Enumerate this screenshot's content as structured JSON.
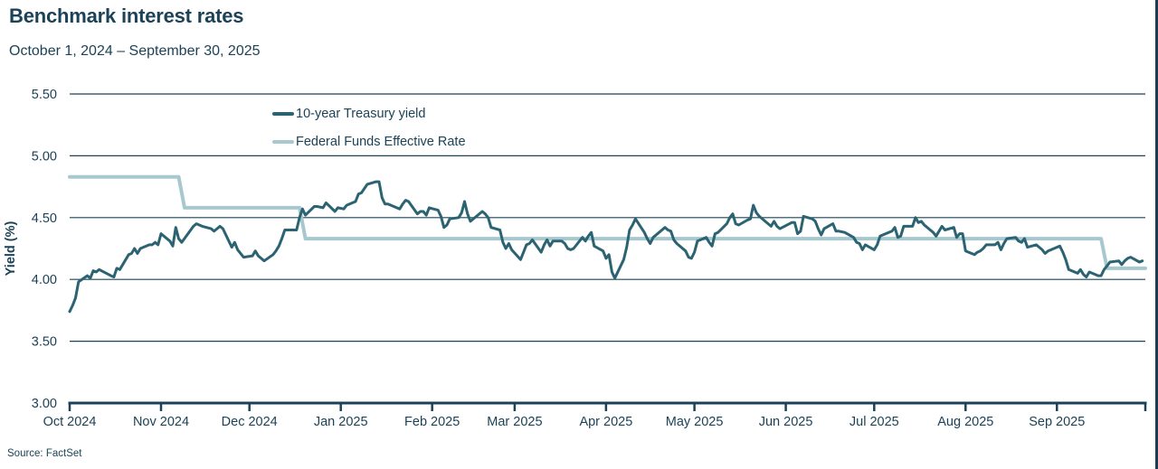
{
  "header": {
    "title": "Benchmark interest rates",
    "subtitle": "October 1, 2024 – September 30, 2025"
  },
  "source_label": "Source: FactSet",
  "colors": {
    "treasury_line": "#2B6372",
    "fed_funds_line": "#A8C8CF",
    "text": "#1C4257",
    "gridline": "#1C4257",
    "axis": "#1C4257",
    "right_border": "#1C3C50"
  },
  "chart_data": {
    "type": "line",
    "title": "Benchmark interest rates",
    "subtitle": "October 1, 2024 – September 30, 2025",
    "ylabel": "Yield (%)",
    "ylim": [
      3.0,
      5.5
    ],
    "yticks": [
      "5.50",
      "5.00",
      "4.50",
      "4.00",
      "3.50",
      "3.00"
    ],
    "grid": "horizontal-only",
    "legend_position": "top-left-inside",
    "x_axis": {
      "unit": "days since Oct 1, 2024",
      "range": [
        0,
        365
      ],
      "ticks": [
        {
          "day": 0,
          "label": "Oct 2024"
        },
        {
          "day": 31,
          "label": "Nov 2024"
        },
        {
          "day": 61,
          "label": "Dec 2024"
        },
        {
          "day": 92,
          "label": "Jan 2025"
        },
        {
          "day": 123,
          "label": "Feb 2025"
        },
        {
          "day": 151,
          "label": "Mar 2025"
        },
        {
          "day": 182,
          "label": "Apr 2025"
        },
        {
          "day": 212,
          "label": "May 2025"
        },
        {
          "day": 243,
          "label": "Jun 2025"
        },
        {
          "day": 273,
          "label": "Jul 2025"
        },
        {
          "day": 304,
          "label": "Aug 2025"
        },
        {
          "day": 335,
          "label": "Sep 2025"
        },
        {
          "day": 365,
          "label": ""
        }
      ]
    },
    "series": [
      {
        "name": "10-year Treasury yield",
        "color": "#2B6372",
        "width": 3,
        "z": 2,
        "points": [
          [
            0,
            3.74
          ],
          [
            1,
            3.79
          ],
          [
            2,
            3.85
          ],
          [
            3,
            3.98
          ],
          [
            6,
            4.03
          ],
          [
            7,
            4.01
          ],
          [
            8,
            4.07
          ],
          [
            9,
            4.06
          ],
          [
            10,
            4.08
          ],
          [
            14,
            4.03
          ],
          [
            15,
            4.02
          ],
          [
            16,
            4.09
          ],
          [
            17,
            4.08
          ],
          [
            20,
            4.2
          ],
          [
            21,
            4.21
          ],
          [
            22,
            4.25
          ],
          [
            23,
            4.21
          ],
          [
            24,
            4.25
          ],
          [
            27,
            4.28
          ],
          [
            28,
            4.28
          ],
          [
            29,
            4.3
          ],
          [
            30,
            4.28
          ],
          [
            31,
            4.37
          ],
          [
            34,
            4.31
          ],
          [
            35,
            4.27
          ],
          [
            36,
            4.42
          ],
          [
            37,
            4.33
          ],
          [
            38,
            4.3
          ],
          [
            42,
            4.43
          ],
          [
            43,
            4.45
          ],
          [
            44,
            4.44
          ],
          [
            45,
            4.43
          ],
          [
            48,
            4.41
          ],
          [
            49,
            4.39
          ],
          [
            50,
            4.41
          ],
          [
            51,
            4.43
          ],
          [
            52,
            4.41
          ],
          [
            55,
            4.26
          ],
          [
            56,
            4.3
          ],
          [
            57,
            4.24
          ],
          [
            59,
            4.18
          ],
          [
            62,
            4.19
          ],
          [
            63,
            4.23
          ],
          [
            64,
            4.19
          ],
          [
            65,
            4.17
          ],
          [
            66,
            4.15
          ],
          [
            69,
            4.2
          ],
          [
            70,
            4.23
          ],
          [
            71,
            4.27
          ],
          [
            72,
            4.33
          ],
          [
            73,
            4.4
          ],
          [
            76,
            4.4
          ],
          [
            77,
            4.4
          ],
          [
            78,
            4.5
          ],
          [
            79,
            4.57
          ],
          [
            80,
            4.52
          ],
          [
            83,
            4.59
          ],
          [
            84,
            4.59
          ],
          [
            86,
            4.58
          ],
          [
            87,
            4.62
          ],
          [
            90,
            4.55
          ],
          [
            91,
            4.58
          ],
          [
            93,
            4.57
          ],
          [
            94,
            4.6
          ],
          [
            97,
            4.63
          ],
          [
            98,
            4.69
          ],
          [
            99,
            4.7
          ],
          [
            101,
            4.77
          ],
          [
            104,
            4.79
          ],
          [
            105,
            4.79
          ],
          [
            106,
            4.66
          ],
          [
            107,
            4.61
          ],
          [
            108,
            4.61
          ],
          [
            112,
            4.57
          ],
          [
            113,
            4.61
          ],
          [
            114,
            4.64
          ],
          [
            115,
            4.63
          ],
          [
            118,
            4.53
          ],
          [
            119,
            4.55
          ],
          [
            120,
            4.55
          ],
          [
            121,
            4.52
          ],
          [
            122,
            4.58
          ],
          [
            125,
            4.56
          ],
          [
            126,
            4.51
          ],
          [
            127,
            4.42
          ],
          [
            128,
            4.44
          ],
          [
            129,
            4.49
          ],
          [
            132,
            4.5
          ],
          [
            133,
            4.54
          ],
          [
            134,
            4.63
          ],
          [
            135,
            4.53
          ],
          [
            136,
            4.47
          ],
          [
            140,
            4.55
          ],
          [
            141,
            4.53
          ],
          [
            142,
            4.5
          ],
          [
            143,
            4.42
          ],
          [
            146,
            4.4
          ],
          [
            147,
            4.3
          ],
          [
            148,
            4.25
          ],
          [
            149,
            4.29
          ],
          [
            150,
            4.24
          ],
          [
            153,
            4.16
          ],
          [
            154,
            4.22
          ],
          [
            155,
            4.28
          ],
          [
            156,
            4.29
          ],
          [
            157,
            4.32
          ],
          [
            160,
            4.22
          ],
          [
            161,
            4.28
          ],
          [
            162,
            4.32
          ],
          [
            163,
            4.27
          ],
          [
            164,
            4.31
          ],
          [
            167,
            4.31
          ],
          [
            168,
            4.29
          ],
          [
            169,
            4.25
          ],
          [
            170,
            4.24
          ],
          [
            171,
            4.25
          ],
          [
            174,
            4.34
          ],
          [
            175,
            4.31
          ],
          [
            176,
            4.35
          ],
          [
            177,
            4.38
          ],
          [
            178,
            4.27
          ],
          [
            181,
            4.23
          ],
          [
            182,
            4.17
          ],
          [
            183,
            4.2
          ],
          [
            184,
            4.06
          ],
          [
            185,
            4.01
          ],
          [
            188,
            4.16
          ],
          [
            189,
            4.26
          ],
          [
            190,
            4.4
          ],
          [
            191,
            4.44
          ],
          [
            192,
            4.49
          ],
          [
            195,
            4.38
          ],
          [
            196,
            4.33
          ],
          [
            197,
            4.29
          ],
          [
            198,
            4.34
          ],
          [
            202,
            4.42
          ],
          [
            203,
            4.4
          ],
          [
            204,
            4.39
          ],
          [
            205,
            4.32
          ],
          [
            206,
            4.29
          ],
          [
            209,
            4.23
          ],
          [
            210,
            4.18
          ],
          [
            211,
            4.17
          ],
          [
            212,
            4.22
          ],
          [
            213,
            4.31
          ],
          [
            216,
            4.34
          ],
          [
            217,
            4.3
          ],
          [
            218,
            4.27
          ],
          [
            219,
            4.37
          ],
          [
            220,
            4.38
          ],
          [
            223,
            4.45
          ],
          [
            224,
            4.5
          ],
          [
            225,
            4.53
          ],
          [
            226,
            4.45
          ],
          [
            227,
            4.44
          ],
          [
            230,
            4.48
          ],
          [
            231,
            4.49
          ],
          [
            232,
            4.6
          ],
          [
            233,
            4.54
          ],
          [
            234,
            4.51
          ],
          [
            238,
            4.43
          ],
          [
            239,
            4.47
          ],
          [
            240,
            4.43
          ],
          [
            241,
            4.41
          ],
          [
            245,
            4.46
          ],
          [
            246,
            4.46
          ],
          [
            247,
            4.37
          ],
          [
            248,
            4.39
          ],
          [
            249,
            4.51
          ],
          [
            252,
            4.49
          ],
          [
            253,
            4.47
          ],
          [
            254,
            4.41
          ],
          [
            255,
            4.36
          ],
          [
            256,
            4.41
          ],
          [
            259,
            4.45
          ],
          [
            260,
            4.39
          ],
          [
            261,
            4.39
          ],
          [
            263,
            4.38
          ],
          [
            266,
            4.34
          ],
          [
            267,
            4.3
          ],
          [
            268,
            4.29
          ],
          [
            269,
            4.24
          ],
          [
            270,
            4.28
          ],
          [
            273,
            4.24
          ],
          [
            274,
            4.28
          ],
          [
            275,
            4.35
          ],
          [
            279,
            4.39
          ],
          [
            280,
            4.42
          ],
          [
            281,
            4.34
          ],
          [
            282,
            4.35
          ],
          [
            283,
            4.43
          ],
          [
            286,
            4.43
          ],
          [
            287,
            4.5
          ],
          [
            288,
            4.46
          ],
          [
            289,
            4.47
          ],
          [
            290,
            4.44
          ],
          [
            293,
            4.38
          ],
          [
            294,
            4.35
          ],
          [
            295,
            4.39
          ],
          [
            296,
            4.43
          ],
          [
            297,
            4.4
          ],
          [
            300,
            4.42
          ],
          [
            301,
            4.34
          ],
          [
            302,
            4.37
          ],
          [
            303,
            4.37
          ],
          [
            304,
            4.23
          ],
          [
            307,
            4.2
          ],
          [
            308,
            4.22
          ],
          [
            309,
            4.23
          ],
          [
            310,
            4.25
          ],
          [
            311,
            4.28
          ],
          [
            314,
            4.28
          ],
          [
            315,
            4.3
          ],
          [
            316,
            4.24
          ],
          [
            317,
            4.29
          ],
          [
            318,
            4.33
          ],
          [
            321,
            4.34
          ],
          [
            322,
            4.31
          ],
          [
            323,
            4.3
          ],
          [
            324,
            4.33
          ],
          [
            325,
            4.26
          ],
          [
            328,
            4.28
          ],
          [
            329,
            4.26
          ],
          [
            330,
            4.24
          ],
          [
            331,
            4.21
          ],
          [
            332,
            4.23
          ],
          [
            336,
            4.27
          ],
          [
            337,
            4.22
          ],
          [
            338,
            4.16
          ],
          [
            339,
            4.08
          ],
          [
            342,
            4.05
          ],
          [
            343,
            4.08
          ],
          [
            344,
            4.04
          ],
          [
            345,
            4.02
          ],
          [
            346,
            4.06
          ],
          [
            349,
            4.03
          ],
          [
            350,
            4.03
          ],
          [
            351,
            4.08
          ],
          [
            352,
            4.11
          ],
          [
            353,
            4.14
          ],
          [
            356,
            4.15
          ],
          [
            357,
            4.12
          ],
          [
            358,
            4.15
          ],
          [
            359,
            4.17
          ],
          [
            360,
            4.18
          ],
          [
            363,
            4.14
          ],
          [
            364,
            4.15
          ]
        ]
      },
      {
        "name": "Federal Funds Effective Rate",
        "color": "#A8C8CF",
        "width": 4,
        "z": 1,
        "points": [
          [
            0,
            4.83
          ],
          [
            37,
            4.83
          ],
          [
            39,
            4.58
          ],
          [
            78,
            4.58
          ],
          [
            80,
            4.33
          ],
          [
            350,
            4.33
          ],
          [
            352,
            4.09
          ],
          [
            365,
            4.09
          ]
        ]
      }
    ]
  }
}
